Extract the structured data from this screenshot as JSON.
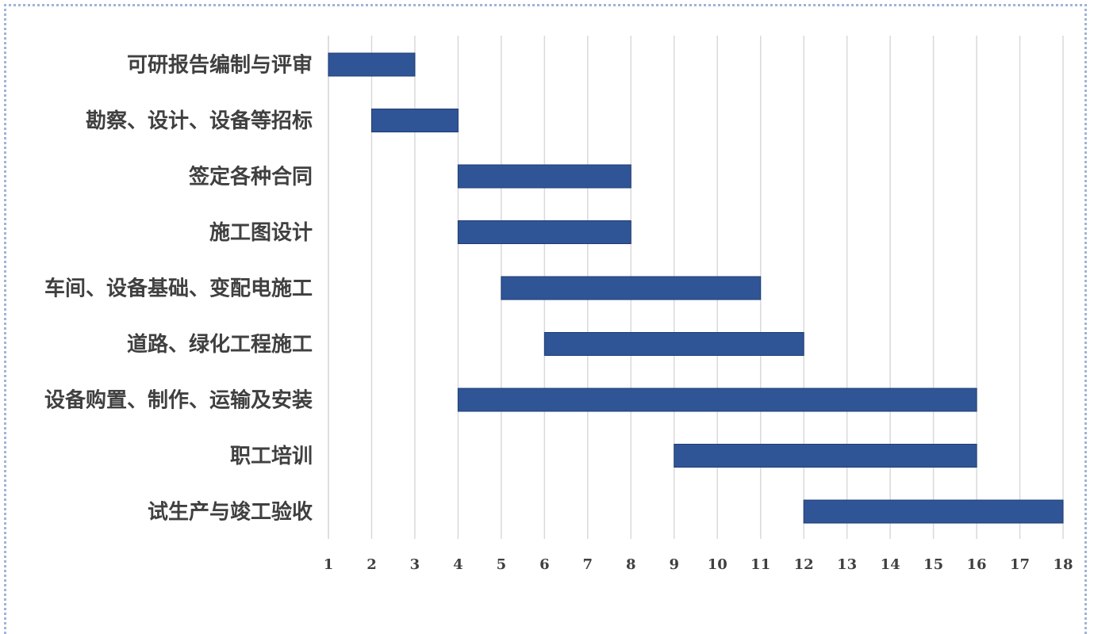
{
  "colors": {
    "bar": "#2f5597",
    "grid": "#d9d9d9",
    "text": "#404040",
    "frame": "#9fb4d6"
  },
  "chart_data": {
    "type": "bar",
    "orientation": "horizontal",
    "title": "",
    "xlabel": "",
    "ylabel": "",
    "xlim": [
      1,
      18
    ],
    "x_ticks": [
      "1",
      "2",
      "3",
      "4",
      "5",
      "6",
      "7",
      "8",
      "9",
      "10",
      "11",
      "12",
      "13",
      "14",
      "15",
      "16",
      "17",
      "18"
    ],
    "grid": true,
    "tasks": [
      {
        "label": "可研报告编制与评审",
        "start": 1,
        "end": 3
      },
      {
        "label": "勘察、设计、设备等招标",
        "start": 2,
        "end": 4
      },
      {
        "label": "签定各种合同",
        "start": 4,
        "end": 8
      },
      {
        "label": "施工图设计",
        "start": 4,
        "end": 8
      },
      {
        "label": "车间、设备基础、变配电施工",
        "start": 5,
        "end": 11
      },
      {
        "label": "道路、绿化工程施工",
        "start": 6,
        "end": 12
      },
      {
        "label": "设备购置、制作、运输及安装",
        "start": 4,
        "end": 16
      },
      {
        "label": "职工培训",
        "start": 9,
        "end": 16
      },
      {
        "label": "试生产与竣工验收",
        "start": 12,
        "end": 18
      }
    ]
  }
}
